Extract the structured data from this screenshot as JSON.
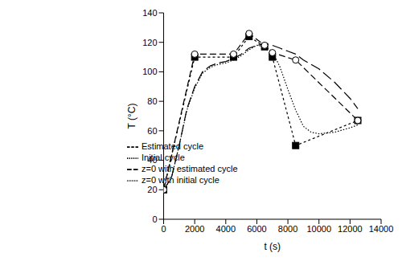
{
  "chart_data": {
    "type": "line",
    "x_label": "t (s)",
    "y_label": "T (°C)",
    "xlim": [
      0,
      14000
    ],
    "xticks": [
      0,
      2000,
      4000,
      6000,
      8000,
      10000,
      12000,
      14000
    ],
    "ylim": [
      0,
      140
    ],
    "yticks": [
      0,
      20,
      40,
      60,
      80,
      100,
      120,
      140
    ],
    "grid": false,
    "legend": "center",
    "series": [
      {
        "name": "Initial cycle",
        "color": "#000000",
        "line_style": "dotted",
        "marker": "square",
        "x": [
          0,
          2000,
          4500,
          5500,
          6500,
          7000,
          8500,
          12500
        ],
        "values": [
          20,
          110,
          110,
          124,
          117,
          110,
          50,
          67
        ]
      },
      {
        "name": "Estimated cycle",
        "color": "#000000",
        "line_style": "dashed",
        "marker": "circle",
        "x": [
          0,
          2000,
          4500,
          5500,
          6500,
          7000,
          8500,
          12500
        ],
        "values": [
          20,
          112,
          112,
          126,
          118,
          113,
          108,
          67
        ]
      },
      {
        "name": "z=0 with estimated cycle",
        "color": "#000000",
        "line_style": "long_dashed",
        "marker": "none",
        "x": [
          0,
          500,
          1000,
          1500,
          2000,
          2500,
          3000,
          3500,
          4000,
          4500,
          5000,
          5500,
          6000,
          6500,
          7000,
          7500,
          8000,
          8500,
          9000,
          10000,
          11000,
          12000,
          12500
        ],
        "values": [
          20,
          28,
          50,
          75,
          90,
          100,
          104,
          106,
          107,
          109,
          112,
          116,
          118,
          119,
          118,
          116,
          114,
          112,
          108,
          102,
          93,
          82,
          75
        ]
      },
      {
        "name": "z=0 with initial cycle",
        "color": "#000000",
        "line_style": "fine_dotted",
        "marker": "none",
        "x": [
          0,
          500,
          1000,
          1500,
          2000,
          2500,
          3000,
          3500,
          4000,
          4500,
          5000,
          5500,
          6000,
          6500,
          7000,
          7500,
          8000,
          8500,
          9000,
          9500,
          10000,
          11000,
          12000,
          12500
        ],
        "values": [
          20,
          28,
          50,
          74,
          89,
          99,
          103,
          105,
          106,
          108,
          111,
          115,
          118,
          117,
          114,
          103,
          88,
          74,
          63,
          59,
          58,
          59,
          62,
          64
        ]
      }
    ]
  }
}
